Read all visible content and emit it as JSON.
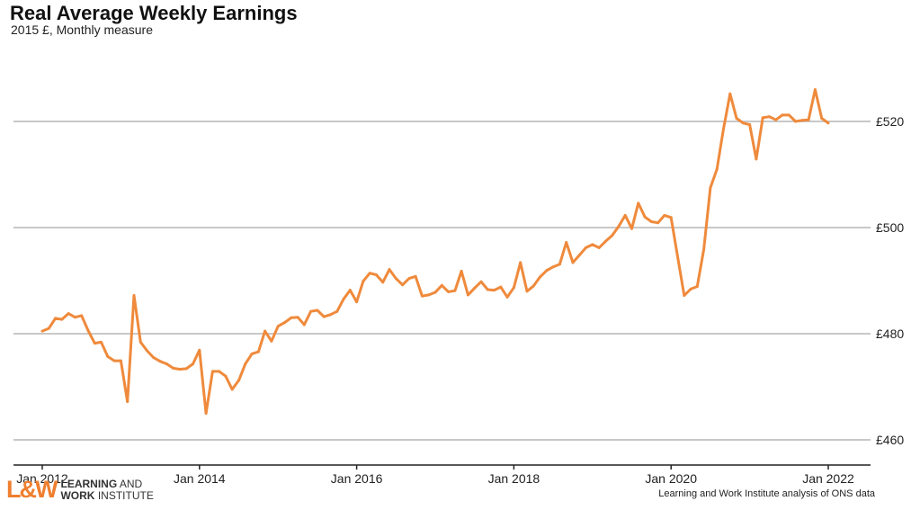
{
  "header": {
    "title": "Real Average Weekly Earnings",
    "subtitle": "2015 £, Monthly measure"
  },
  "footer": {
    "logo_mark": "L&W",
    "logo_line1_bold": "LEARNING",
    "logo_line1_rest": " AND",
    "logo_line2_bold": "WORK",
    "logo_line2_rest": " INSTITUTE",
    "source": "Learning and Work Institute analysis of ONS data"
  },
  "colors": {
    "line": "#ef8a3c",
    "grid": "#c8c8c8",
    "axis": "#222222"
  },
  "chart_data": {
    "type": "line",
    "title": "Real Average Weekly Earnings",
    "subtitle": "2015 £, Monthly measure",
    "xlabel": "",
    "ylabel": "",
    "ylim": [
      457,
      530
    ],
    "y_ticks": [
      460,
      480,
      500,
      520
    ],
    "y_tick_labels": [
      "£460",
      "£480",
      "£500",
      "£520"
    ],
    "x_ticks": [
      "2012-01",
      "2014-01",
      "2016-01",
      "2018-01",
      "2020-01",
      "2022-01"
    ],
    "x_tick_labels": [
      "Jan 2012",
      "Jan 2014",
      "Jan 2016",
      "Jan 2018",
      "Jan 2020",
      "Jan 2022"
    ],
    "grid": "horizontal",
    "legend": "none",
    "series": [
      {
        "start": "2012-01",
        "frequency": "monthly",
        "values": [
          480.5,
          481.0,
          482.9,
          482.7,
          483.8,
          483.1,
          483.4,
          480.6,
          478.2,
          478.4,
          475.7,
          474.9,
          474.9,
          467.2,
          487.2,
          478.4,
          476.8,
          475.5,
          474.8,
          474.3,
          473.5,
          473.3,
          473.4,
          474.3,
          476.9,
          465.0,
          472.9,
          472.9,
          472.0,
          469.5,
          471.2,
          474.3,
          476.2,
          476.6,
          480.5,
          478.6,
          481.4,
          482.1,
          483.0,
          483.1,
          481.7,
          484.2,
          484.4,
          483.2,
          483.6,
          484.2,
          486.5,
          488.2,
          486.0,
          489.9,
          491.4,
          491.1,
          489.7,
          492.1,
          490.4,
          489.2,
          490.4,
          490.8,
          487.1,
          487.3,
          487.8,
          489.1,
          487.9,
          488.1,
          491.8,
          487.3,
          488.6,
          489.8,
          488.3,
          488.2,
          488.8,
          486.9,
          488.7,
          493.4,
          488.0,
          489.0,
          490.7,
          491.9,
          492.6,
          493.1,
          497.2,
          493.4,
          494.8,
          496.2,
          496.8,
          496.2,
          497.4,
          498.5,
          500.2,
          502.3,
          499.8,
          504.6,
          502.0,
          501.1,
          500.9,
          502.3,
          501.9,
          494.5,
          487.2,
          488.4,
          488.9,
          495.9,
          507.5,
          511.0,
          518.6,
          525.2,
          520.6,
          519.7,
          519.4,
          512.9,
          520.7,
          520.9,
          520.3,
          521.2,
          521.2,
          520.0,
          520.2,
          520.3,
          526.0,
          520.6,
          519.7
        ]
      }
    ]
  }
}
